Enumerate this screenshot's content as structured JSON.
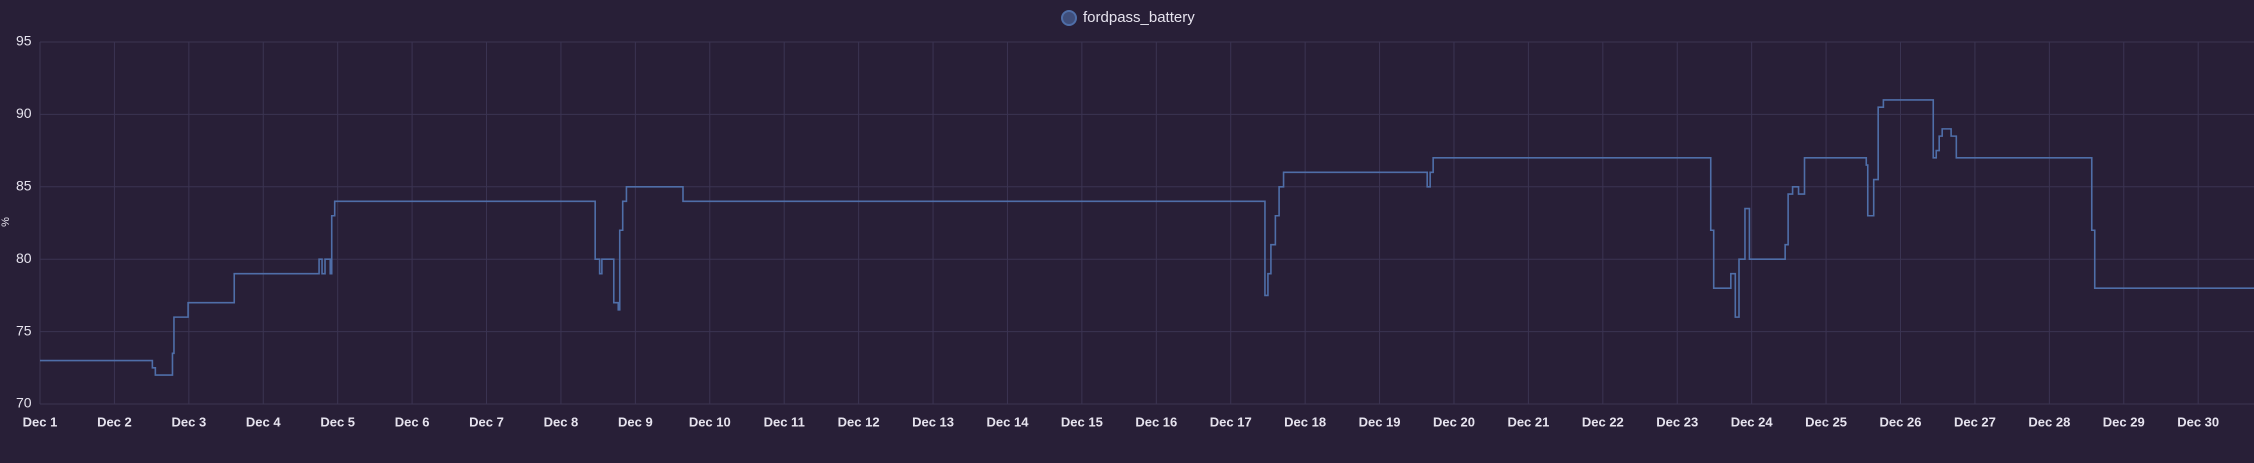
{
  "chart_data": {
    "type": "line",
    "step": true,
    "y_label": "%",
    "x": [
      0,
      1.51,
      1.55,
      1.78,
      1.8,
      1.99,
      2.61,
      3.75,
      3.79,
      3.83,
      3.9,
      3.92,
      3.96,
      7.46,
      7.52,
      7.55,
      7.71,
      7.77,
      7.79,
      7.83,
      7.88,
      8.64,
      16.46,
      16.5,
      16.54,
      16.6,
      16.65,
      16.71,
      18.64,
      18.68,
      18.72,
      22.45,
      22.49,
      22.72,
      22.78,
      22.83,
      22.91,
      22.97,
      23.45,
      23.49,
      23.55,
      23.63,
      23.71,
      24.54,
      24.56,
      24.64,
      24.7,
      24.77,
      25.44,
      25.48,
      25.52,
      25.56,
      25.68,
      25.75,
      27.57,
      27.61,
      29.75
    ],
    "series": [
      {
        "name": "fordpass_battery",
        "color": "#4f6ea8",
        "values": [
          73,
          72.5,
          72,
          73.5,
          76,
          77,
          79,
          80,
          79,
          80,
          79,
          83,
          84,
          80,
          79,
          80,
          77,
          76.5,
          82,
          84,
          85,
          84,
          77.5,
          79,
          81,
          83,
          85,
          86,
          85,
          86,
          87,
          82,
          78,
          79,
          76,
          80,
          83.5,
          80,
          81,
          84.5,
          85,
          84.5,
          87,
          86.5,
          83,
          85.5,
          90.5,
          91,
          87,
          87.5,
          88.5,
          89,
          88.5,
          87,
          82,
          78,
          78
        ]
      }
    ],
    "xlim": [
      0,
      29.75
    ],
    "xticks": [
      {
        "value": 0,
        "label": "Dec 1"
      },
      {
        "value": 1,
        "label": "Dec 2"
      },
      {
        "value": 2,
        "label": "Dec 3"
      },
      {
        "value": 3,
        "label": "Dec 4"
      },
      {
        "value": 4,
        "label": "Dec 5"
      },
      {
        "value": 5,
        "label": "Dec 6"
      },
      {
        "value": 6,
        "label": "Dec 7"
      },
      {
        "value": 7,
        "label": "Dec 8"
      },
      {
        "value": 8,
        "label": "Dec 9"
      },
      {
        "value": 9,
        "label": "Dec 10"
      },
      {
        "value": 10,
        "label": "Dec 11"
      },
      {
        "value": 11,
        "label": "Dec 12"
      },
      {
        "value": 12,
        "label": "Dec 13"
      },
      {
        "value": 13,
        "label": "Dec 14"
      },
      {
        "value": 14,
        "label": "Dec 15"
      },
      {
        "value": 15,
        "label": "Dec 16"
      },
      {
        "value": 16,
        "label": "Dec 17"
      },
      {
        "value": 17,
        "label": "Dec 18"
      },
      {
        "value": 18,
        "label": "Dec 19"
      },
      {
        "value": 19,
        "label": "Dec 20"
      },
      {
        "value": 20,
        "label": "Dec 21"
      },
      {
        "value": 21,
        "label": "Dec 22"
      },
      {
        "value": 22,
        "label": "Dec 23"
      },
      {
        "value": 23,
        "label": "Dec 24"
      },
      {
        "value": 24,
        "label": "Dec 25"
      },
      {
        "value": 25,
        "label": "Dec 26"
      },
      {
        "value": 26,
        "label": "Dec 27"
      },
      {
        "value": 27,
        "label": "Dec 28"
      },
      {
        "value": 28,
        "label": "Dec 29"
      },
      {
        "value": 29,
        "label": "Dec 30"
      }
    ],
    "ylim": [
      70,
      95
    ],
    "yticks": [
      70,
      75,
      80,
      85,
      90,
      95
    ],
    "grid": true
  }
}
